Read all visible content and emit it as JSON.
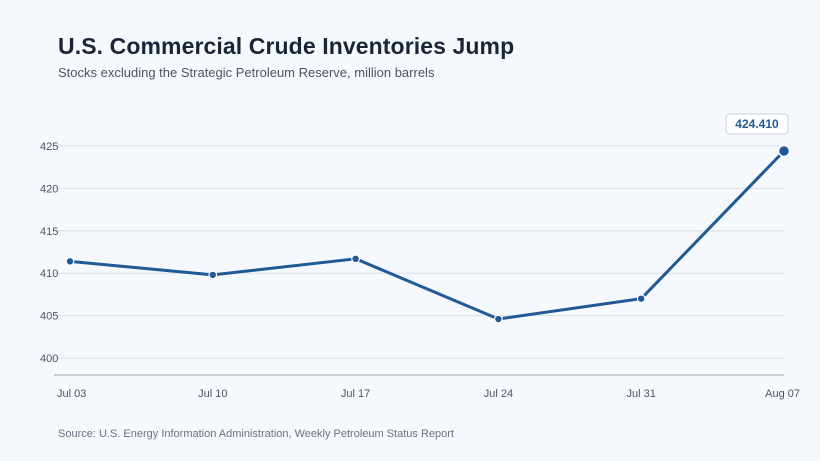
{
  "title": "U.S. Commercial Crude Inventories Jump",
  "subtitle": "Stocks excluding the Strategic Petroleum Reserve, million barrels",
  "source": "Source: U.S. Energy Information Administration, Weekly Petroleum Status Report",
  "colors": {
    "line": "#1f5a96",
    "grid": "#d9dee6",
    "axis": "#b9c0ca",
    "background": "#f5f8fc"
  },
  "chart_data": {
    "type": "line",
    "categories": [
      "Jul 03",
      "Jul 10",
      "Jul 17",
      "Jul 24",
      "Jul 31",
      "Aug 07"
    ],
    "series": [
      {
        "values": [
          411.4,
          409.8,
          411.7,
          404.6,
          407.0,
          424.41
        ]
      }
    ],
    "yticks": [
      400,
      405,
      410,
      415,
      420,
      425
    ],
    "ylim": [
      398,
      425
    ],
    "grid": true,
    "annotation": {
      "index": 5,
      "label": "424.410"
    }
  }
}
